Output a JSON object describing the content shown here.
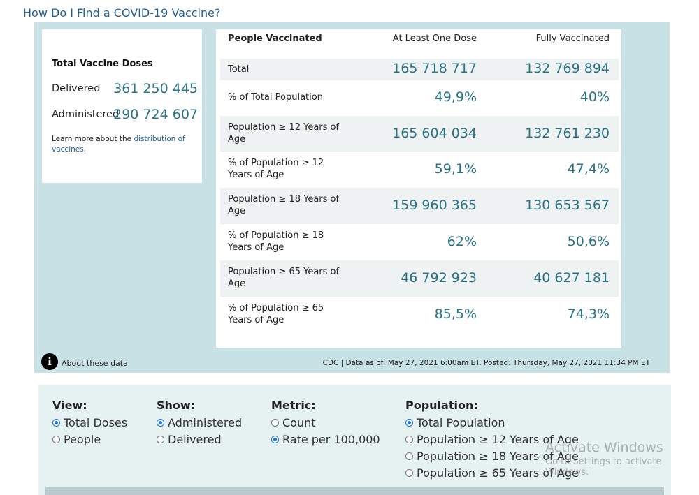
{
  "header": {
    "link_text": "How Do I Find a COVID-19 Vaccine?"
  },
  "doses": {
    "title": "Total Vaccine Doses",
    "delivered_label": "Delivered",
    "delivered_value": "361 250 445",
    "administered_label": "Administered",
    "administered_value": "290 724 607",
    "learn_prefix": "Learn more about the ",
    "learn_link": "distribution of vaccines",
    "learn_suffix": "."
  },
  "table": {
    "header": {
      "col0": "People Vaccinated",
      "col1": "At Least One Dose",
      "col2": "Fully Vaccinated"
    },
    "rows": [
      {
        "label": "Total",
        "one": "165 718 717",
        "full": "132 769 894"
      },
      {
        "label": "% of Total Population",
        "one": "49,9%",
        "full": "40%"
      },
      {
        "label": "Population ≥ 12 Years of Age",
        "one": "165 604 034",
        "full": "132 761 230"
      },
      {
        "label": "% of Population ≥ 12 Years of Age",
        "one": "59,1%",
        "full": "47,4%"
      },
      {
        "label": "Population ≥ 18 Years of Age",
        "one": "159 960 365",
        "full": "130 653 567"
      },
      {
        "label": "% of Population ≥ 18 Years of Age",
        "one": "62%",
        "full": "50,6%"
      },
      {
        "label": "Population ≥ 65 Years of Age",
        "one": "46 792 923",
        "full": "40 627 181"
      },
      {
        "label": "% of Population ≥ 65 Years of Age",
        "one": "85,5%",
        "full": "74,3%"
      }
    ]
  },
  "footer": {
    "info_glyph": "i",
    "about_text": "About these data",
    "source_text": "CDC | Data as of: May 27, 2021 6:00am ET. Posted: Thursday, May 27, 2021 11:34 PM ET"
  },
  "controls": {
    "view": {
      "title": "View:",
      "options": [
        {
          "label": "Total Doses",
          "selected": true
        },
        {
          "label": "People",
          "selected": false
        }
      ]
    },
    "show": {
      "title": "Show:",
      "options": [
        {
          "label": "Administered",
          "selected": true
        },
        {
          "label": "Delivered",
          "selected": false
        }
      ]
    },
    "metric": {
      "title": "Metric:",
      "options": [
        {
          "label": "Count",
          "selected": false
        },
        {
          "label": "Rate per 100,000",
          "selected": true
        }
      ]
    },
    "population": {
      "title": "Population:",
      "options": [
        {
          "label": "Total Population",
          "selected": true
        },
        {
          "label": "Population ≥ 12 Years of Age",
          "selected": false
        },
        {
          "label": "Population ≥ 18 Years of Age",
          "selected": false
        },
        {
          "label": "Population ≥ 65 Years of Age",
          "selected": false
        }
      ]
    }
  },
  "watermark": {
    "line1": "Activate Windows",
    "line2": "Go to Settings to activate Windows."
  },
  "colors": {
    "panel": "#c8e1e5",
    "value_text": "#2a7385",
    "link": "#1f5d93",
    "controls_bg": "#e6f1f2"
  },
  "icons": {
    "info": "info-circle-icon",
    "radio_on": "radio-selected-icon",
    "radio_off": "radio-unselected-icon"
  }
}
